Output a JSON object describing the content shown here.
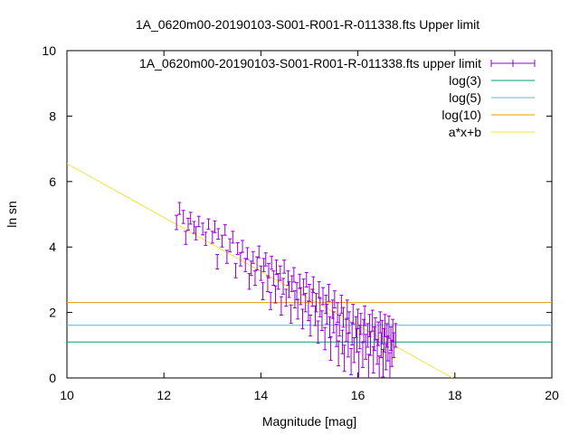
{
  "chart_data": {
    "type": "scatter",
    "title": "1A_0620m00-20190103-S001-R001-R-011338.fts Upper limit",
    "xlabel": "Magnitude [mag]",
    "ylabel": "ln sn",
    "xlim": [
      10,
      20
    ],
    "ylim": [
      0,
      10
    ],
    "x_ticks": [
      "10",
      "12",
      "14",
      "16",
      "18",
      "20"
    ],
    "y_ticks": [
      "0",
      "2",
      "4",
      "6",
      "8",
      "10"
    ],
    "grid": false,
    "legend_position": "top-right",
    "colors": {
      "points": "#9400d3",
      "log3": "#009e73",
      "log5": "#56b4e9",
      "log10": "#e69f00",
      "fit": "#f0e442"
    },
    "series": [
      {
        "name": "1A_0620m00-20190103-S001-R001-R-011338.fts upper limit",
        "kind": "errorbar-points",
        "points": [
          [
            12.26,
            4.75,
            0.22
          ],
          [
            12.32,
            5.18,
            0.18
          ],
          [
            12.4,
            4.92,
            0.2
          ],
          [
            12.45,
            4.28,
            0.2
          ],
          [
            12.5,
            4.7,
            0.18
          ],
          [
            12.55,
            4.88,
            0.18
          ],
          [
            12.62,
            4.6,
            0.18
          ],
          [
            12.66,
            4.42,
            0.2
          ],
          [
            12.72,
            4.78,
            0.16
          ],
          [
            12.8,
            4.55,
            0.18
          ],
          [
            12.86,
            4.25,
            0.2
          ],
          [
            12.92,
            4.7,
            0.16
          ],
          [
            13.0,
            4.3,
            0.18
          ],
          [
            13.05,
            4.62,
            0.18
          ],
          [
            13.1,
            3.55,
            0.22
          ],
          [
            13.12,
            4.4,
            0.16
          ],
          [
            13.2,
            4.18,
            0.18
          ],
          [
            13.26,
            4.52,
            0.16
          ],
          [
            13.3,
            3.7,
            0.2
          ],
          [
            13.36,
            4.05,
            0.2
          ],
          [
            13.42,
            4.3,
            0.18
          ],
          [
            13.48,
            3.28,
            0.22
          ],
          [
            13.52,
            3.95,
            0.18
          ],
          [
            13.58,
            3.62,
            0.2
          ],
          [
            13.62,
            4.02,
            0.18
          ],
          [
            13.68,
            3.45,
            0.2
          ],
          [
            13.72,
            3.8,
            0.18
          ],
          [
            13.76,
            2.95,
            0.24
          ],
          [
            13.8,
            3.35,
            0.22
          ],
          [
            13.84,
            3.68,
            0.18
          ],
          [
            13.88,
            3.05,
            0.22
          ],
          [
            13.92,
            3.5,
            0.2
          ],
          [
            13.96,
            3.85,
            0.18
          ],
          [
            14.0,
            3.2,
            0.22
          ],
          [
            14.04,
            2.65,
            0.26
          ],
          [
            14.06,
            3.45,
            0.2
          ],
          [
            14.1,
            3.62,
            0.2
          ],
          [
            14.14,
            2.88,
            0.24
          ],
          [
            14.16,
            3.28,
            0.22
          ],
          [
            14.2,
            2.35,
            0.26
          ],
          [
            14.22,
            3.52,
            0.2
          ],
          [
            14.26,
            3.05,
            0.22
          ],
          [
            14.3,
            2.55,
            0.26
          ],
          [
            14.32,
            3.38,
            0.22
          ],
          [
            14.36,
            2.95,
            0.24
          ],
          [
            14.4,
            3.2,
            0.22
          ],
          [
            14.42,
            2.2,
            0.28
          ],
          [
            14.46,
            2.8,
            0.24
          ],
          [
            14.48,
            3.4,
            0.2
          ],
          [
            14.52,
            2.45,
            0.26
          ],
          [
            14.56,
            3.05,
            0.22
          ],
          [
            14.58,
            2.7,
            0.24
          ],
          [
            14.62,
            1.95,
            0.28
          ],
          [
            14.64,
            2.88,
            0.24
          ],
          [
            14.68,
            3.15,
            0.22
          ],
          [
            14.7,
            2.4,
            0.26
          ],
          [
            14.74,
            2.65,
            0.26
          ],
          [
            14.76,
            2.1,
            0.3
          ],
          [
            14.8,
            2.95,
            0.22
          ],
          [
            14.82,
            2.5,
            0.26
          ],
          [
            14.86,
            1.8,
            0.3
          ],
          [
            14.88,
            2.78,
            0.24
          ],
          [
            14.92,
            2.3,
            0.28
          ],
          [
            14.94,
            3.0,
            0.22
          ],
          [
            14.98,
            2.05,
            0.3
          ],
          [
            15.0,
            2.6,
            0.26
          ],
          [
            15.02,
            1.6,
            0.32
          ],
          [
            15.06,
            2.45,
            0.26
          ],
          [
            15.08,
            2.85,
            0.24
          ],
          [
            15.12,
            1.9,
            0.3
          ],
          [
            15.14,
            2.3,
            0.28
          ],
          [
            15.18,
            1.4,
            0.34
          ],
          [
            15.2,
            2.7,
            0.24
          ],
          [
            15.22,
            2.15,
            0.28
          ],
          [
            15.26,
            1.75,
            0.3
          ],
          [
            15.28,
            2.5,
            0.26
          ],
          [
            15.32,
            1.2,
            0.34
          ],
          [
            15.34,
            2.25,
            0.28
          ],
          [
            15.36,
            1.95,
            0.3
          ],
          [
            15.4,
            2.6,
            0.26
          ],
          [
            15.42,
            1.55,
            0.32
          ],
          [
            15.44,
            0.9,
            0.36
          ],
          [
            15.48,
            2.1,
            0.28
          ],
          [
            15.5,
            1.7,
            0.32
          ],
          [
            15.52,
            2.4,
            0.26
          ],
          [
            15.56,
            1.3,
            0.34
          ],
          [
            15.58,
            2.0,
            0.3
          ],
          [
            15.6,
            0.75,
            0.38
          ],
          [
            15.62,
            1.6,
            0.32
          ],
          [
            15.66,
            2.25,
            0.28
          ],
          [
            15.68,
            1.1,
            0.36
          ],
          [
            15.7,
            1.85,
            0.3
          ],
          [
            15.72,
            0.6,
            0.4
          ],
          [
            15.76,
            1.45,
            0.34
          ],
          [
            15.78,
            2.1,
            0.28
          ],
          [
            15.8,
            1.0,
            0.36
          ],
          [
            15.82,
            1.7,
            0.32
          ],
          [
            15.86,
            0.5,
            0.4
          ],
          [
            15.88,
            1.35,
            0.34
          ],
          [
            15.9,
            1.95,
            0.3
          ],
          [
            15.92,
            0.85,
            0.38
          ],
          [
            15.96,
            1.55,
            0.32
          ],
          [
            15.98,
            1.15,
            0.36
          ],
          [
            16.0,
            1.8,
            0.3
          ],
          [
            16.02,
            0.4,
            0.4
          ],
          [
            16.04,
            1.25,
            0.36
          ],
          [
            16.06,
            1.65,
            0.32
          ],
          [
            16.1,
            0.7,
            0.38
          ],
          [
            16.12,
            1.45,
            0.34
          ],
          [
            16.14,
            1.9,
            0.3
          ],
          [
            16.16,
            0.95,
            0.38
          ],
          [
            16.2,
            1.3,
            0.36
          ],
          [
            16.22,
            0.3,
            0.42
          ],
          [
            16.24,
            1.6,
            0.34
          ],
          [
            16.26,
            1.05,
            0.36
          ],
          [
            16.3,
            1.75,
            0.32
          ],
          [
            16.32,
            0.55,
            0.4
          ],
          [
            16.34,
            1.2,
            0.36
          ],
          [
            16.36,
            1.5,
            0.34
          ],
          [
            16.4,
            0.8,
            0.38
          ],
          [
            16.42,
            1.35,
            0.36
          ],
          [
            16.44,
            0.25,
            0.42
          ],
          [
            16.46,
            1.7,
            0.32
          ],
          [
            16.48,
            1.0,
            0.38
          ],
          [
            16.5,
            1.4,
            0.36
          ],
          [
            16.52,
            0.45,
            0.42
          ],
          [
            16.54,
            1.15,
            0.36
          ],
          [
            16.56,
            1.6,
            0.34
          ],
          [
            16.58,
            0.65,
            0.4
          ],
          [
            16.6,
            1.3,
            0.36
          ],
          [
            16.62,
            0.9,
            0.38
          ],
          [
            16.64,
            1.55,
            0.34
          ],
          [
            16.66,
            0.35,
            0.42
          ],
          [
            16.68,
            1.2,
            0.36
          ],
          [
            16.7,
            0.75,
            0.4
          ],
          [
            16.72,
            1.45,
            0.34
          ],
          [
            16.74,
            1.0,
            0.38
          ],
          [
            16.78,
            1.3,
            0.36
          ]
        ]
      },
      {
        "name": "log(3)",
        "kind": "hline",
        "y": 1.0986
      },
      {
        "name": "log(5)",
        "kind": "hline",
        "y": 1.6094
      },
      {
        "name": "log(10)",
        "kind": "hline",
        "y": 2.3026
      },
      {
        "name": "a*x+b",
        "kind": "line",
        "x": [
          10,
          17.95
        ],
        "y": [
          6.55,
          0
        ]
      }
    ]
  }
}
